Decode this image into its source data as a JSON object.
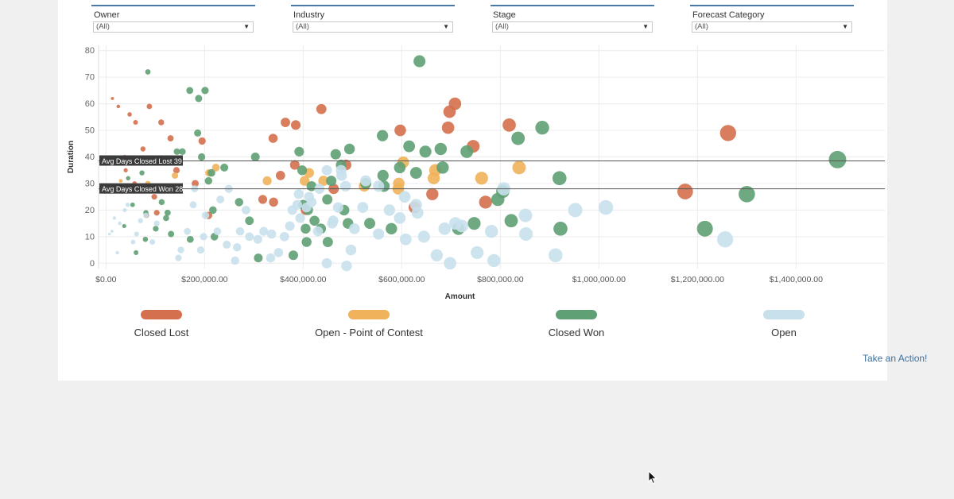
{
  "filters": [
    {
      "label": "Owner",
      "value": "(All)"
    },
    {
      "label": "Industry",
      "value": "(All)"
    },
    {
      "label": "Stage",
      "value": "(All)"
    },
    {
      "label": "Forecast Category",
      "value": "(All)"
    }
  ],
  "action_link": "Take an Action!",
  "colors": {
    "closed_lost": "#d4704e",
    "open_point_of_contest": "#f0b25a",
    "closed_won": "#5fa074",
    "open": "#c8e0ec",
    "background": "#f0f0f0",
    "panel": "#ffffff"
  },
  "chart_data": {
    "type": "scatter",
    "xlabel": "Amount",
    "ylabel": "Duration",
    "xlim": [
      -15000,
      1580000
    ],
    "ylim": [
      -2,
      82
    ],
    "x_ticks": [
      {
        "value": 0,
        "label": "$0.00"
      },
      {
        "value": 200000,
        "label": "$200,000.00"
      },
      {
        "value": 400000,
        "label": "$400,000.00"
      },
      {
        "value": 600000,
        "label": "$600,000.00"
      },
      {
        "value": 800000,
        "label": "$800,000.00"
      },
      {
        "value": 1000000,
        "label": "$1,000,000.00"
      },
      {
        "value": 1200000,
        "label": "$1,200,000.00"
      },
      {
        "value": 1400000,
        "label": "$1,400,000.00"
      }
    ],
    "y_ticks": [
      0,
      10,
      20,
      30,
      40,
      50,
      60,
      70,
      80
    ],
    "grid": true,
    "size_encodes": "Amount",
    "reference_lines": [
      {
        "y": 38.5,
        "label": "Avg Days Closed Lost 39"
      },
      {
        "y": 28,
        "label": "Avg Days Closed Won 28"
      }
    ],
    "legend_position": "bottom",
    "series": [
      {
        "name": "Closed Lost",
        "color": "#d4704e",
        "points": [
          [
            1262000,
            49
          ],
          [
            1175000,
            27
          ],
          [
            708000,
            60
          ],
          [
            697000,
            57
          ],
          [
            694000,
            51
          ],
          [
            745000,
            44
          ],
          [
            818000,
            52
          ],
          [
            770000,
            23
          ],
          [
            597000,
            50
          ],
          [
            626000,
            21
          ],
          [
            662000,
            26
          ],
          [
            437000,
            58
          ],
          [
            364000,
            53
          ],
          [
            385000,
            52
          ],
          [
            339000,
            47
          ],
          [
            383000,
            37
          ],
          [
            354000,
            33
          ],
          [
            340000,
            23
          ],
          [
            318000,
            24
          ],
          [
            405000,
            20
          ],
          [
            462000,
            28
          ],
          [
            487000,
            37
          ],
          [
            88000,
            59
          ],
          [
            112000,
            53
          ],
          [
            131000,
            47
          ],
          [
            195000,
            46
          ],
          [
            208000,
            18
          ],
          [
            143000,
            35
          ],
          [
            181000,
            30
          ],
          [
            60000,
            53
          ],
          [
            75000,
            43
          ],
          [
            48000,
            56
          ],
          [
            40000,
            35
          ],
          [
            38000,
            40
          ],
          [
            25000,
            59
          ],
          [
            13000,
            62
          ],
          [
            103000,
            19
          ],
          [
            82000,
            18
          ],
          [
            98000,
            25
          ],
          [
            58000,
            30
          ]
        ]
      },
      {
        "name": "Open - Point of Contest",
        "color": "#f0b25a",
        "points": [
          [
            838000,
            36
          ],
          [
            762000,
            32
          ],
          [
            668000,
            35
          ],
          [
            665000,
            32
          ],
          [
            603000,
            38
          ],
          [
            594000,
            30
          ],
          [
            593000,
            28
          ],
          [
            524000,
            29
          ],
          [
            441000,
            31
          ],
          [
            403000,
            31
          ],
          [
            412000,
            34
          ],
          [
            327000,
            31
          ],
          [
            223000,
            36
          ],
          [
            209000,
            34
          ],
          [
            140000,
            33
          ],
          [
            65000,
            38
          ],
          [
            85000,
            30
          ],
          [
            30000,
            31
          ]
        ]
      },
      {
        "name": "Closed Won",
        "color": "#5fa074",
        "points": [
          [
            1484000,
            39
          ],
          [
            1300000,
            26
          ],
          [
            1215000,
            13
          ],
          [
            920000,
            32
          ],
          [
            922000,
            13
          ],
          [
            885000,
            51
          ],
          [
            836000,
            47
          ],
          [
            805000,
            27
          ],
          [
            795000,
            24
          ],
          [
            822000,
            16
          ],
          [
            732000,
            42
          ],
          [
            715000,
            13
          ],
          [
            747000,
            15
          ],
          [
            683000,
            36
          ],
          [
            679000,
            43
          ],
          [
            615000,
            44
          ],
          [
            629000,
            34
          ],
          [
            648000,
            42
          ],
          [
            636000,
            76
          ],
          [
            596000,
            36
          ],
          [
            561000,
            48
          ],
          [
            562000,
            33
          ],
          [
            564000,
            29
          ],
          [
            477000,
            37
          ],
          [
            494000,
            43
          ],
          [
            466000,
            41
          ],
          [
            449000,
            24
          ],
          [
            457000,
            31
          ],
          [
            483000,
            20
          ],
          [
            423000,
            16
          ],
          [
            417000,
            29
          ],
          [
            436000,
            13
          ],
          [
            450000,
            8
          ],
          [
            410000,
            20
          ],
          [
            392000,
            42
          ],
          [
            398000,
            35
          ],
          [
            400000,
            22
          ],
          [
            405000,
            13
          ],
          [
            380000,
            3
          ],
          [
            407000,
            8
          ],
          [
            535000,
            15
          ],
          [
            527000,
            30
          ],
          [
            491000,
            15
          ],
          [
            579000,
            13
          ],
          [
            303000,
            40
          ],
          [
            291000,
            16
          ],
          [
            309000,
            2
          ],
          [
            270000,
            23
          ],
          [
            240000,
            36
          ],
          [
            214000,
            34
          ],
          [
            208000,
            31
          ],
          [
            194000,
            40
          ],
          [
            170000,
            65
          ],
          [
            201000,
            65
          ],
          [
            188000,
            62
          ],
          [
            155000,
            42
          ],
          [
            186000,
            49
          ],
          [
            217000,
            20
          ],
          [
            171000,
            9
          ],
          [
            144000,
            42
          ],
          [
            113000,
            23
          ],
          [
            125000,
            19
          ],
          [
            132000,
            11
          ],
          [
            122000,
            17
          ],
          [
            85000,
            72
          ],
          [
            81000,
            19
          ],
          [
            101000,
            13
          ],
          [
            73000,
            34
          ],
          [
            54000,
            22
          ],
          [
            45000,
            32
          ],
          [
            28000,
            27
          ],
          [
            80000,
            9
          ],
          [
            220000,
            10
          ],
          [
            37000,
            14
          ],
          [
            61000,
            4
          ]
        ]
      },
      {
        "name": "Open",
        "color": "#c8e0ec",
        "points": [
          [
            1256000,
            9
          ],
          [
            1014000,
            21
          ],
          [
            952000,
            20
          ],
          [
            912000,
            3
          ],
          [
            851000,
            18
          ],
          [
            852000,
            11
          ],
          [
            807000,
            28
          ],
          [
            782000,
            12
          ],
          [
            787000,
            1
          ],
          [
            753000,
            4
          ],
          [
            722000,
            14
          ],
          [
            709000,
            15
          ],
          [
            698000,
            0
          ],
          [
            687000,
            13
          ],
          [
            671000,
            3
          ],
          [
            645000,
            10
          ],
          [
            632000,
            19
          ],
          [
            629000,
            22
          ],
          [
            606000,
            25
          ],
          [
            608000,
            9
          ],
          [
            596000,
            17
          ],
          [
            575000,
            20
          ],
          [
            553000,
            11
          ],
          [
            553000,
            29
          ],
          [
            527000,
            31
          ],
          [
            521000,
            21
          ],
          [
            504000,
            13
          ],
          [
            497000,
            5
          ],
          [
            486000,
            29
          ],
          [
            477000,
            35
          ],
          [
            478000,
            33
          ],
          [
            471000,
            21
          ],
          [
            459000,
            15
          ],
          [
            461000,
            16
          ],
          [
            448000,
            35
          ],
          [
            433000,
            28
          ],
          [
            430000,
            12
          ],
          [
            417000,
            23
          ],
          [
            412000,
            25
          ],
          [
            407000,
            21
          ],
          [
            394000,
            17
          ],
          [
            391000,
            26
          ],
          [
            388000,
            22
          ],
          [
            378000,
            20
          ],
          [
            373000,
            14
          ],
          [
            362000,
            10
          ],
          [
            350000,
            4
          ],
          [
            336000,
            11
          ],
          [
            320000,
            12
          ],
          [
            308000,
            9
          ],
          [
            291000,
            10
          ],
          [
            284000,
            20
          ],
          [
            272000,
            12
          ],
          [
            266000,
            6
          ],
          [
            249000,
            28
          ],
          [
            245000,
            7
          ],
          [
            232000,
            24
          ],
          [
            226000,
            12
          ],
          [
            202000,
            18
          ],
          [
            198000,
            10
          ],
          [
            192000,
            5
          ],
          [
            180000,
            28
          ],
          [
            177000,
            22
          ],
          [
            165000,
            12
          ],
          [
            152000,
            5
          ],
          [
            147000,
            2
          ],
          [
            103000,
            15
          ],
          [
            94000,
            8
          ],
          [
            81000,
            18
          ],
          [
            70000,
            16
          ],
          [
            62000,
            11
          ],
          [
            55000,
            8
          ],
          [
            44000,
            22
          ],
          [
            38000,
            20
          ],
          [
            28000,
            15
          ],
          [
            23000,
            4
          ],
          [
            17000,
            17
          ],
          [
            12000,
            12
          ],
          [
            7000,
            11
          ],
          [
            262000,
            1
          ],
          [
            334000,
            2
          ],
          [
            448000,
            0
          ],
          [
            488000,
            -1
          ]
        ]
      }
    ]
  }
}
